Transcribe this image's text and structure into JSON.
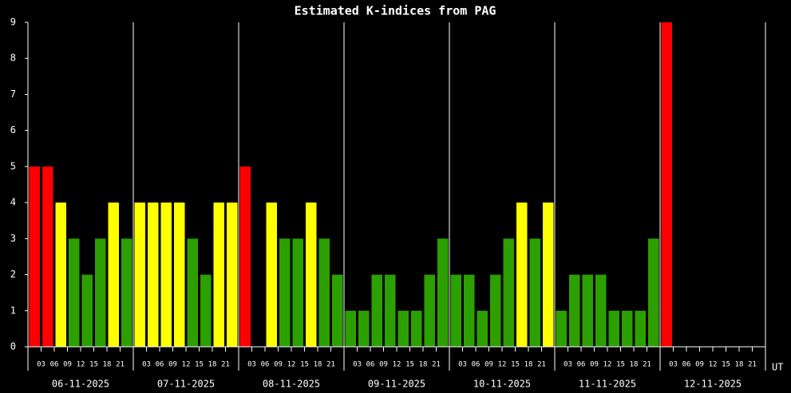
{
  "chart_data": {
    "type": "bar",
    "title": "Estimated K-indices from PAG",
    "categories": [
      "06-11-2025",
      "07-11-2025",
      "08-11-2025",
      "09-11-2025",
      "10-11-2025",
      "11-11-2025",
      "12-11-2025"
    ],
    "hours": [
      "03",
      "06",
      "09",
      "12",
      "15",
      "18",
      "21"
    ],
    "x_unit": "UT",
    "values": [
      [
        5,
        5,
        4,
        3,
        2,
        3,
        4,
        3
      ],
      [
        4,
        4,
        4,
        4,
        3,
        2,
        4,
        4
      ],
      [
        5,
        0,
        4,
        3,
        3,
        4,
        3,
        2
      ],
      [
        1,
        1,
        2,
        2,
        1,
        1,
        2,
        3
      ],
      [
        2,
        2,
        1,
        2,
        3,
        4,
        3,
        4
      ],
      [
        1,
        2,
        2,
        2,
        1,
        1,
        1,
        3
      ],
      [
        9,
        null,
        null,
        null,
        null,
        null,
        null,
        null
      ]
    ],
    "level_colors": [
      "#2ca000",
      "#2ca000",
      "#2ca000",
      "#2ca000",
      "#ffff00",
      "#ff0000",
      "#ff0000",
      "#ff0000",
      "#ff0000",
      "#ff0000"
    ],
    "ylim": [
      0,
      9
    ],
    "yticks": [
      0,
      1,
      2,
      3,
      4,
      5,
      6,
      7,
      8,
      9
    ],
    "axis_color": "#ffffff"
  }
}
